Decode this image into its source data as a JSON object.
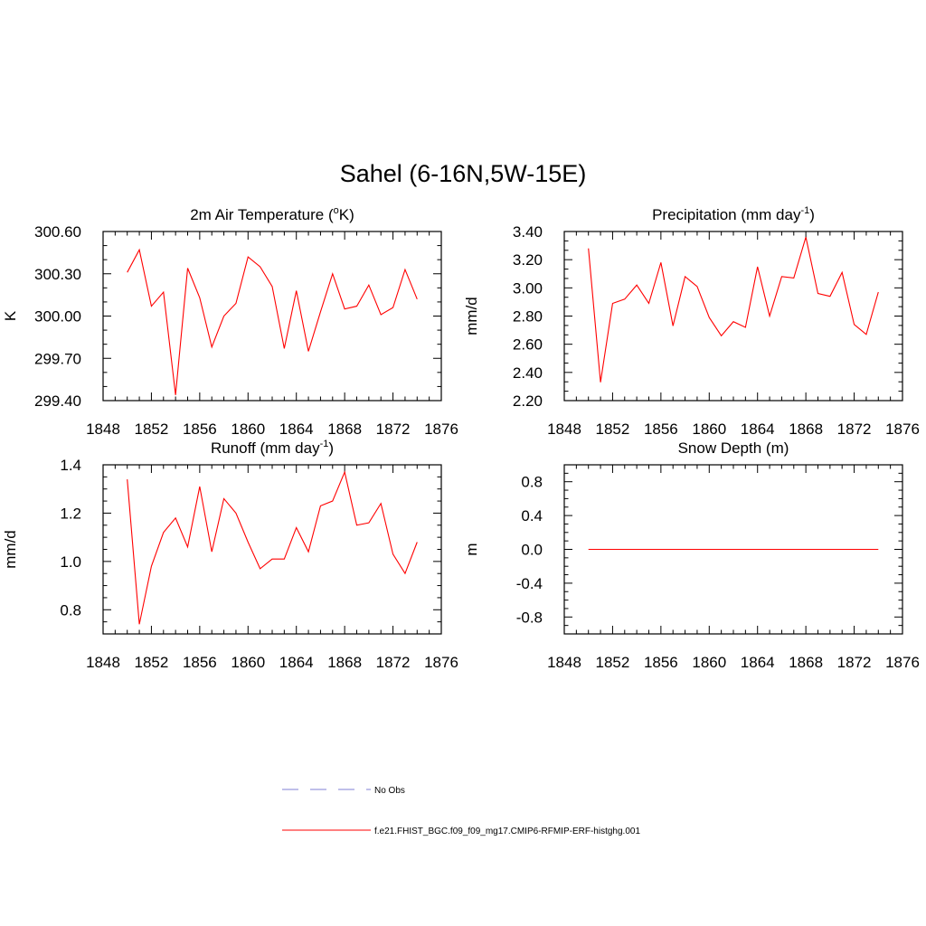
{
  "figure": {
    "title": "Sahel (6-16N,5W-15E)"
  },
  "colors": {
    "model_line": "#ff0000",
    "obs_line": "#9999dd",
    "axis": "#000000"
  },
  "legend": {
    "obs": {
      "label": "No Obs"
    },
    "model": {
      "label": "f.e21.FHIST_BGC.f09_f09_mg17.CMIP6-RFMIP-ERF-histghg.001"
    }
  },
  "chart_data": [
    {
      "type": "line",
      "id": "t2m",
      "title": {
        "main": "2m Air Temperature (",
        "sup": "o",
        "tail": "K)"
      },
      "ylabel": "K",
      "xlabel": "",
      "xlim": [
        1848,
        1876
      ],
      "ylim": [
        299.4,
        300.6
      ],
      "xticks": [
        1848,
        1852,
        1856,
        1860,
        1864,
        1868,
        1872,
        1876
      ],
      "yticks": [
        299.4,
        299.7,
        300.0,
        300.3,
        300.6
      ],
      "ytick_labels": [
        "299.40",
        "299.70",
        "300.00",
        "300.30",
        "300.60"
      ],
      "x": [
        1850,
        1851,
        1852,
        1853,
        1854,
        1855,
        1856,
        1857,
        1858,
        1859,
        1860,
        1861,
        1862,
        1863,
        1864,
        1865,
        1866,
        1867,
        1868,
        1869,
        1870,
        1871,
        1872,
        1873,
        1874
      ],
      "values": [
        300.31,
        300.47,
        300.07,
        300.17,
        299.44,
        300.34,
        300.13,
        299.78,
        300.0,
        300.09,
        300.42,
        300.35,
        300.21,
        299.77,
        300.18,
        299.75,
        300.03,
        300.3,
        300.05,
        300.07,
        300.22,
        300.01,
        300.06,
        300.33,
        300.12
      ]
    },
    {
      "type": "line",
      "id": "precip",
      "title": {
        "main": "Precipitation (mm day",
        "sup": "-1",
        "tail": ")"
      },
      "ylabel": "mm/d",
      "xlabel": "",
      "xlim": [
        1848,
        1876
      ],
      "ylim": [
        2.2,
        3.4
      ],
      "xticks": [
        1848,
        1852,
        1856,
        1860,
        1864,
        1868,
        1872,
        1876
      ],
      "yticks": [
        2.2,
        2.4,
        2.6,
        2.8,
        3.0,
        3.2,
        3.4
      ],
      "ytick_labels": [
        "2.20",
        "2.40",
        "2.60",
        "2.80",
        "3.00",
        "3.20",
        "3.40"
      ],
      "x": [
        1850,
        1851,
        1852,
        1853,
        1854,
        1855,
        1856,
        1857,
        1858,
        1859,
        1860,
        1861,
        1862,
        1863,
        1864,
        1865,
        1866,
        1867,
        1868,
        1869,
        1870,
        1871,
        1872,
        1873,
        1874
      ],
      "values": [
        3.28,
        2.33,
        2.89,
        2.92,
        3.02,
        2.89,
        3.18,
        2.73,
        3.08,
        3.01,
        2.79,
        2.66,
        2.76,
        2.72,
        3.15,
        2.8,
        3.08,
        3.07,
        3.36,
        2.96,
        2.94,
        3.11,
        2.74,
        2.67,
        2.97
      ]
    },
    {
      "type": "line",
      "id": "runoff",
      "title": {
        "main": "Runoff (mm day",
        "sup": "-1",
        "tail": ")"
      },
      "ylabel": "mm/d",
      "xlabel": "",
      "xlim": [
        1848,
        1876
      ],
      "ylim": [
        0.7,
        1.4
      ],
      "xticks": [
        1848,
        1852,
        1856,
        1860,
        1864,
        1868,
        1872,
        1876
      ],
      "yticks": [
        0.8,
        1.0,
        1.2,
        1.4
      ],
      "ytick_labels": [
        "0.8",
        "1.0",
        "1.2",
        "1.4"
      ],
      "minor_yticks": [
        0.7,
        0.75,
        0.85,
        0.9,
        0.95,
        1.05,
        1.1,
        1.15,
        1.25,
        1.3,
        1.35
      ],
      "x": [
        1850,
        1851,
        1852,
        1853,
        1854,
        1855,
        1856,
        1857,
        1858,
        1859,
        1860,
        1861,
        1862,
        1863,
        1864,
        1865,
        1866,
        1867,
        1868,
        1869,
        1870,
        1871,
        1872,
        1873,
        1874
      ],
      "values": [
        1.34,
        0.74,
        0.98,
        1.12,
        1.18,
        1.06,
        1.31,
        1.04,
        1.26,
        1.2,
        1.08,
        0.97,
        1.01,
        1.01,
        1.14,
        1.04,
        1.23,
        1.25,
        1.37,
        1.15,
        1.16,
        1.24,
        1.03,
        0.95,
        1.08
      ]
    },
    {
      "type": "line",
      "id": "snow",
      "title": {
        "main": "Snow Depth (m)",
        "sup": "",
        "tail": ""
      },
      "ylabel": "m",
      "xlabel": "",
      "xlim": [
        1848,
        1876
      ],
      "ylim": [
        -1.0,
        1.0
      ],
      "xticks": [
        1848,
        1852,
        1856,
        1860,
        1864,
        1868,
        1872,
        1876
      ],
      "yticks": [
        -0.8,
        -0.4,
        0.0,
        0.4,
        0.8
      ],
      "ytick_labels": [
        "-0.8",
        "-0.4",
        "0.0",
        "0.4",
        "0.8"
      ],
      "minor_yticks": [
        -1.0,
        -0.9,
        -0.7,
        -0.6,
        -0.5,
        -0.3,
        -0.2,
        -0.1,
        0.1,
        0.2,
        0.3,
        0.5,
        0.6,
        0.7,
        0.9,
        1.0
      ],
      "x": [
        1850,
        1851,
        1852,
        1853,
        1854,
        1855,
        1856,
        1857,
        1858,
        1859,
        1860,
        1861,
        1862,
        1863,
        1864,
        1865,
        1866,
        1867,
        1868,
        1869,
        1870,
        1871,
        1872,
        1873,
        1874
      ],
      "values": [
        0,
        0,
        0,
        0,
        0,
        0,
        0,
        0,
        0,
        0,
        0,
        0,
        0,
        0,
        0,
        0,
        0,
        0,
        0,
        0,
        0,
        0,
        0,
        0,
        0
      ]
    }
  ]
}
